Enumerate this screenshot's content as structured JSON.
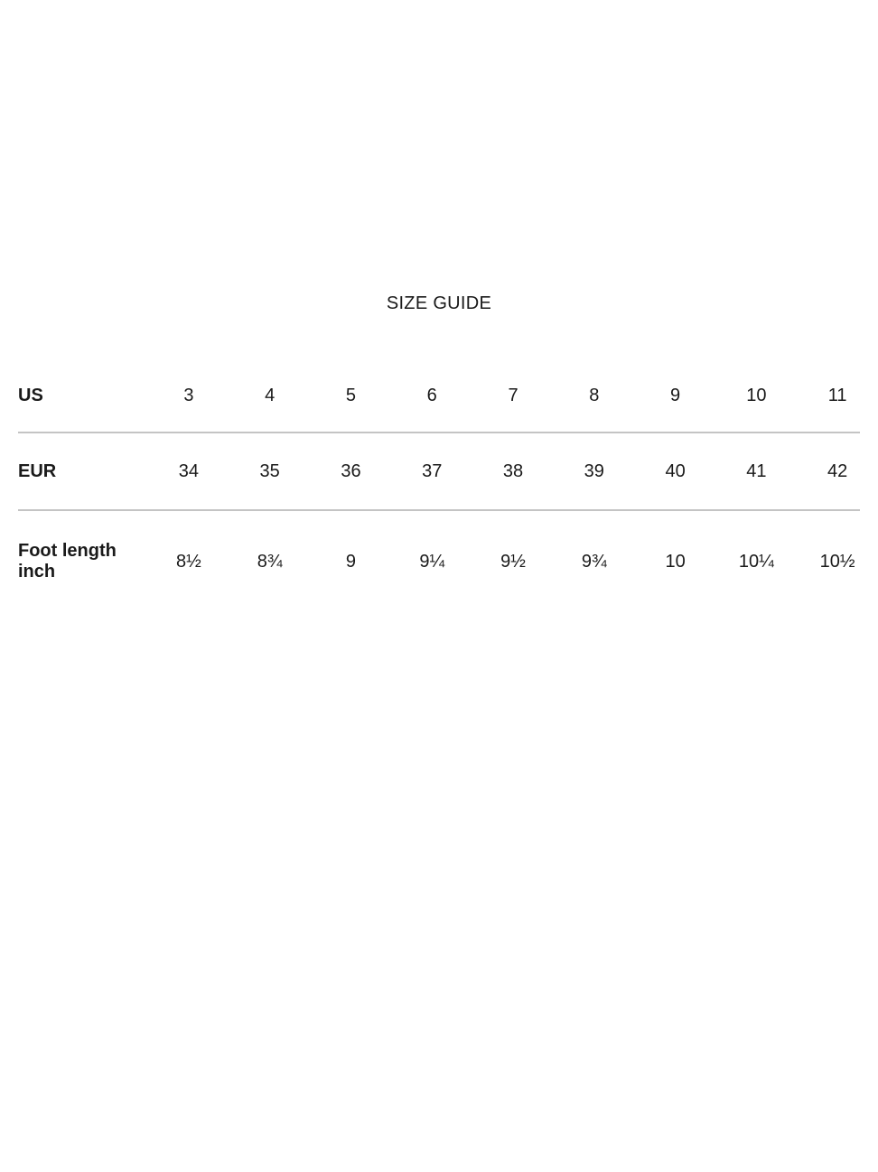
{
  "page": {
    "background_color": "#ffffff",
    "text_color": "#1a1a1a",
    "divider_color": "#c4c4c4"
  },
  "title": "SIZE GUIDE",
  "table": {
    "rows": [
      {
        "label": "US",
        "values": [
          "3",
          "4",
          "5",
          "6",
          "7",
          "8",
          "9",
          "10",
          "11"
        ]
      },
      {
        "label": "EUR",
        "values": [
          "34",
          "35",
          "36",
          "37",
          "38",
          "39",
          "40",
          "41",
          "42"
        ]
      },
      {
        "label": "Foot length inch",
        "values": [
          "8½",
          "8¾",
          "9",
          "9¼",
          "9½",
          "9¾",
          "10",
          "10¼",
          "10½"
        ]
      }
    ]
  }
}
